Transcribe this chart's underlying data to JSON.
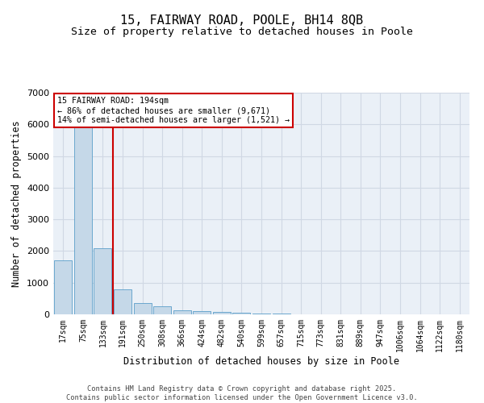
{
  "title": "15, FAIRWAY ROAD, POOLE, BH14 8QB",
  "subtitle": "Size of property relative to detached houses in Poole",
  "xlabel": "Distribution of detached houses by size in Poole",
  "ylabel": "Number of detached properties",
  "categories": [
    "17sqm",
    "75sqm",
    "133sqm",
    "191sqm",
    "250sqm",
    "308sqm",
    "366sqm",
    "424sqm",
    "482sqm",
    "540sqm",
    "599sqm",
    "657sqm",
    "715sqm",
    "773sqm",
    "831sqm",
    "889sqm",
    "947sqm",
    "1006sqm",
    "1064sqm",
    "1122sqm",
    "1180sqm"
  ],
  "values": [
    1700,
    5900,
    2100,
    800,
    350,
    250,
    130,
    100,
    70,
    50,
    30,
    15,
    8,
    4,
    2,
    1,
    1,
    0,
    0,
    0,
    0
  ],
  "bar_color": "#c5d8e8",
  "bar_edge_color": "#5a9ec9",
  "vline_x": 2.5,
  "vline_color": "#cc0000",
  "annotation_title": "15 FAIRWAY ROAD: 194sqm",
  "annotation_line2": "← 86% of detached houses are smaller (9,671)",
  "annotation_line3": "14% of semi-detached houses are larger (1,521) →",
  "annotation_box_color": "#cc0000",
  "annotation_bg": "#ffffff",
  "ylim": [
    0,
    7000
  ],
  "yticks": [
    0,
    1000,
    2000,
    3000,
    4000,
    5000,
    6000,
    7000
  ],
  "grid_color": "#d0d8e4",
  "bg_color": "#eaf0f7",
  "footer_line1": "Contains HM Land Registry data © Crown copyright and database right 2025.",
  "footer_line2": "Contains public sector information licensed under the Open Government Licence v3.0.",
  "title_fontsize": 11,
  "subtitle_fontsize": 9.5,
  "tick_fontsize": 7,
  "label_fontsize": 8.5
}
